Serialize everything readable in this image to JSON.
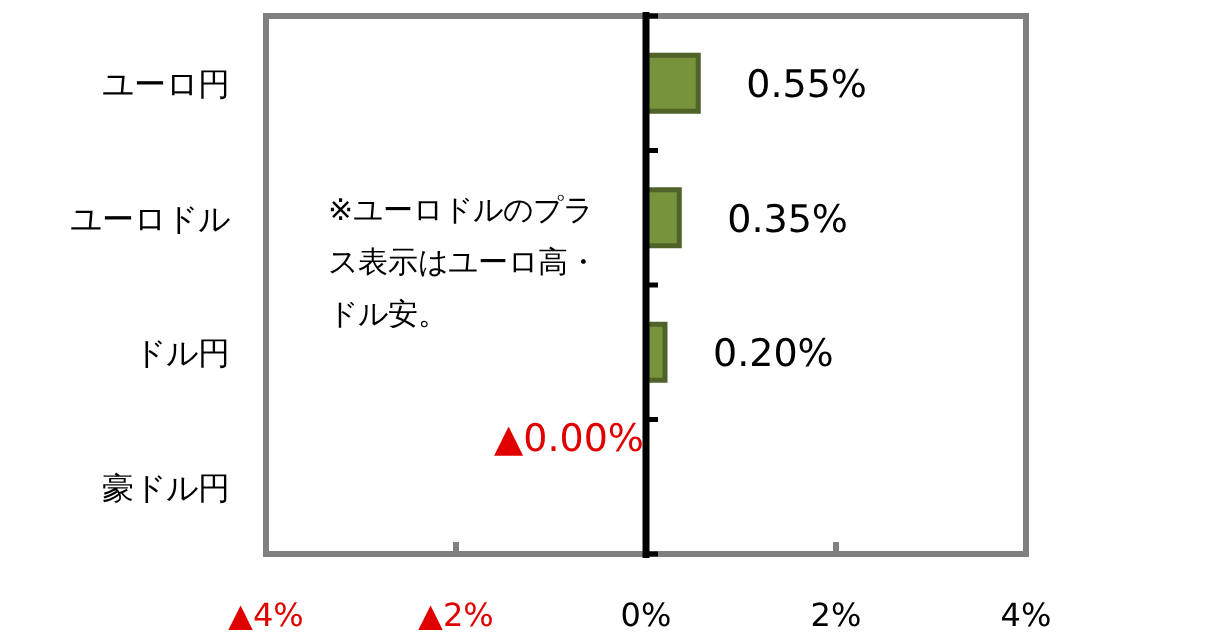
{
  "chart_data": {
    "type": "bar",
    "orientation": "horizontal",
    "categories": [
      "ユーロ円",
      "ユーロドル",
      "ドル円",
      "豪ドル円"
    ],
    "values": [
      0.55,
      0.35,
      0.2,
      -0.004
    ],
    "value_labels": [
      "0.55%",
      "0.35%",
      "0.20%",
      "▲0.00%"
    ],
    "color": "#77933c",
    "xlim": [
      -4,
      4
    ],
    "xticks": [
      {
        "value": -4,
        "label": "▲4%"
      },
      {
        "value": -2,
        "label": "▲2%"
      },
      {
        "value": 0,
        "label": "0%"
      },
      {
        "value": 2,
        "label": "2%"
      },
      {
        "value": 4,
        "label": "4%"
      }
    ],
    "annotations": [
      "※ユーロドルのプラス表示はユーロ高・ドル安。"
    ]
  }
}
